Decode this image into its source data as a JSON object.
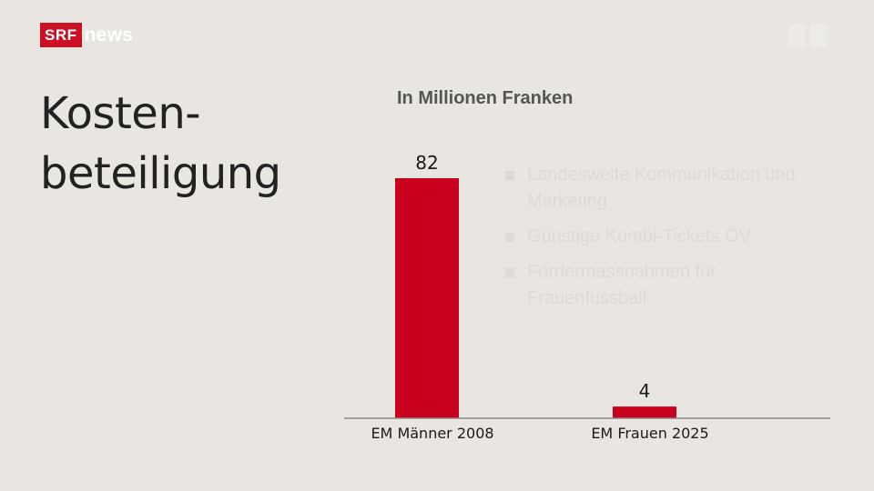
{
  "brand": {
    "logo_box": "SRF",
    "logo_text": "news"
  },
  "heading": {
    "line1": "Kosten-",
    "line2": "beteiligung"
  },
  "faded_background_text": [
    "Landesweite Kommunikation und Marketing",
    "Günstige Kombi-Tickets ÖV",
    "Fördermassnahmen für Frauenfussball"
  ],
  "colors": {
    "background": "#e9e6e1",
    "bar": "#c8001e",
    "brand_red": "#c91024",
    "axis": "#888888"
  },
  "chart_data": {
    "type": "bar",
    "title": "",
    "unit_label": "In Millionen Franken",
    "categories": [
      "EM Männer 2008",
      "EM Frauen 2025"
    ],
    "values": [
      82,
      4
    ],
    "value_labels": [
      "82",
      "4"
    ],
    "ylim": [
      0,
      82
    ],
    "grid": false,
    "legend": "none"
  }
}
